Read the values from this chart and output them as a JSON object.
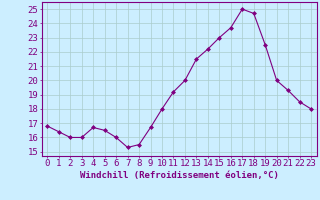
{
  "x": [
    0,
    1,
    2,
    3,
    4,
    5,
    6,
    7,
    8,
    9,
    10,
    11,
    12,
    13,
    14,
    15,
    16,
    17,
    18,
    19,
    20,
    21,
    22,
    23
  ],
  "y": [
    16.8,
    16.4,
    16.0,
    16.0,
    16.7,
    16.5,
    16.0,
    15.3,
    15.5,
    16.7,
    18.0,
    19.2,
    20.0,
    21.5,
    22.2,
    23.0,
    23.7,
    25.0,
    24.7,
    22.5,
    20.0,
    19.3,
    18.5,
    18.0
  ],
  "line_color": "#800080",
  "marker": "D",
  "marker_size": 2.0,
  "bg_color": "#cceeff",
  "grid_color": "#aacccc",
  "xlabel": "Windchill (Refroidissement éolien,°C)",
  "ylabel_ticks": [
    15,
    16,
    17,
    18,
    19,
    20,
    21,
    22,
    23,
    24,
    25
  ],
  "ylim": [
    14.7,
    25.5
  ],
  "xlim": [
    -0.5,
    23.5
  ],
  "xlabel_fontsize": 6.5,
  "tick_fontsize": 6.5,
  "text_color": "#800080",
  "spine_color": "#800080"
}
